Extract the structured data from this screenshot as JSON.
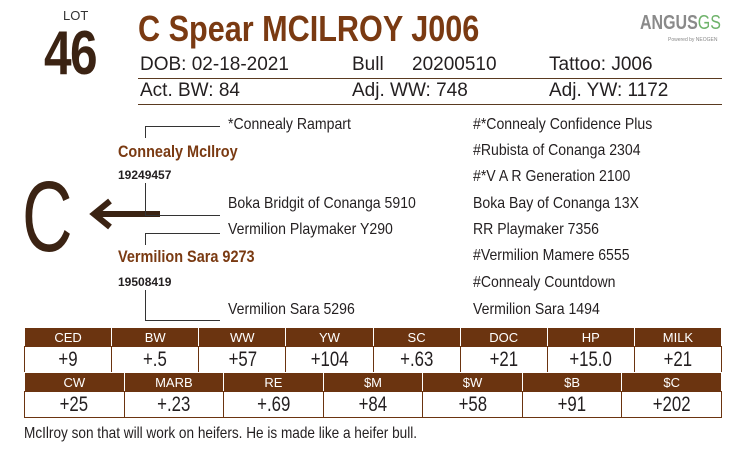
{
  "lot": {
    "label": "LOT",
    "number": "46"
  },
  "title": "C Spear MCILROY J006",
  "logo": {
    "main": "ANGUS",
    "accent": "GS",
    "sub": "Powered by NEOGEN"
  },
  "info": {
    "dob": "DOB: 02-18-2021",
    "sex": "Bull",
    "reg": "20200510",
    "tattoo": "Tattoo: J006",
    "act_bw": "Act. BW: 84",
    "adj_ww": "Adj. WW: 748",
    "adj_yw": "Adj. YW: 1172"
  },
  "pedigree": {
    "sire": "Connealy McIlroy",
    "sire_reg": "19249457",
    "sire_sire": "*Connealy Rampart",
    "sire_dam": "Boka Bridgit of Conanga 5910",
    "dam": "Vermilion Sara 9273",
    "dam_reg": "19508419",
    "dam_sire": "Vermilion Playmaker Y290",
    "dam_dam": "Vermilion Sara 5296",
    "right": [
      "#*Connealy Confidence Plus",
      "#Rubista of Conanga 2304",
      "#*V A R Generation 2100",
      "Boka Bay of Conanga 13X",
      "RR Playmaker 7356",
      "#Vermilion Mamere 6555",
      "#Connealy Countdown",
      "Vermilion Sara 1494"
    ],
    "brand": "C"
  },
  "epd_row1": [
    {
      "label": "CED",
      "value": "+9"
    },
    {
      "label": "BW",
      "value": "+.5"
    },
    {
      "label": "WW",
      "value": "+57"
    },
    {
      "label": "YW",
      "value": "+104"
    },
    {
      "label": "SC",
      "value": "+.63"
    },
    {
      "label": "DOC",
      "value": "+21"
    },
    {
      "label": "HP",
      "value": "+15.0"
    },
    {
      "label": "MILK",
      "value": "+21"
    }
  ],
  "epd_row2": [
    {
      "label": "CW",
      "value": "+25"
    },
    {
      "label": "MARB",
      "value": "+.23"
    },
    {
      "label": "RE",
      "value": "+.69"
    },
    {
      "label": "$M",
      "value": "+84"
    },
    {
      "label": "$W",
      "value": "+58"
    },
    {
      "label": "$B",
      "value": "+91"
    },
    {
      "label": "$C",
      "value": "+202"
    }
  ],
  "comment": "McIlroy son that will work on heifers.  He is made like a heifer bull.",
  "colors": {
    "brown": "#6b3410",
    "title": "#7a3a12"
  }
}
